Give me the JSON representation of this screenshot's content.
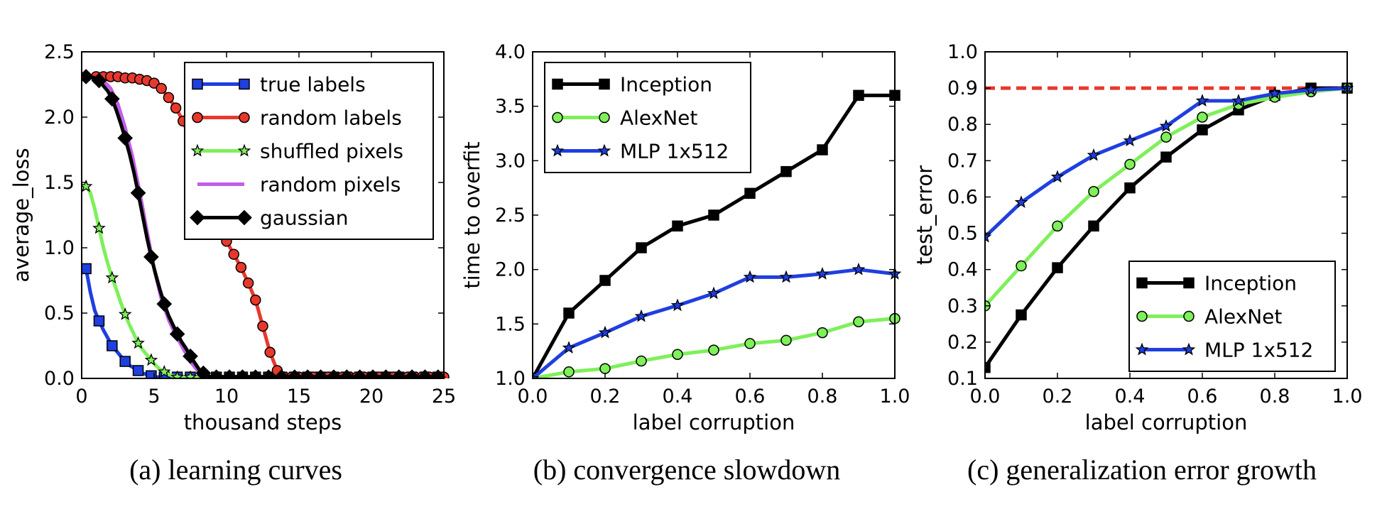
{
  "chart_data": [
    {
      "type": "line",
      "caption": "(a) learning curves",
      "xlabel": "thousand steps",
      "ylabel": "average_loss",
      "xlim": [
        0,
        25
      ],
      "ylim": [
        0,
        2.5
      ],
      "xticks": [
        0,
        5,
        10,
        15,
        20,
        25
      ],
      "yticks": [
        0.0,
        0.5,
        1.0,
        1.5,
        2.0,
        2.5
      ],
      "yticks_decimals": 1,
      "grid": false,
      "legend_position": "top-right",
      "legend_bold": false,
      "series": [
        {
          "name": "true labels",
          "color": "#1f3fe0",
          "marker": "square",
          "x": [
            0.3,
            0.6,
            0.9,
            1.2,
            1.5,
            1.8,
            2.1,
            2.4,
            2.7,
            3.0,
            3.3,
            3.6,
            3.9,
            4.2,
            4.5,
            4.8,
            5.1,
            5.4,
            5.7,
            6.0,
            6.3,
            6.6,
            6.9,
            7.2,
            7.5,
            7.8,
            8.1,
            8.4,
            8.7,
            9.0,
            9.3,
            9.6,
            9.9,
            10.2,
            10.5,
            10.8,
            11.1,
            11.4,
            11.7,
            12.0,
            12.3,
            12.6,
            12.9,
            13.2,
            13.5,
            13.8,
            14.1,
            14.4,
            14.7,
            15.0,
            15.3,
            15.6,
            15.9,
            16.2,
            16.5,
            16.8,
            17.1,
            17.4,
            17.7,
            18.0,
            18.3,
            18.6,
            18.9,
            19.2,
            19.5,
            19.8,
            20.1,
            20.4,
            20.7,
            21.0,
            21.3,
            21.6,
            21.9,
            22.2,
            22.5,
            22.8,
            23.1,
            23.4,
            23.7,
            24.0,
            24.3,
            24.6,
            24.9
          ],
          "y": [
            0.84,
            0.66,
            0.52,
            0.44,
            0.37,
            0.31,
            0.25,
            0.21,
            0.17,
            0.13,
            0.1,
            0.08,
            0.06,
            0.04,
            0.03,
            0.02,
            0.01,
            0.01,
            0.01,
            0.01,
            0.01,
            0.01,
            0.01,
            0.01,
            0.01,
            0.01,
            0.01,
            0.01,
            0.01,
            0.01,
            0.01,
            0.01,
            0.01,
            0.01,
            0.01,
            0.01,
            0.01,
            0.01,
            0.01,
            0.01,
            0.01,
            0.01,
            0.01,
            0.01,
            0.01,
            0.01,
            0.01,
            0.01,
            0.01,
            0.01,
            0.01,
            0.01,
            0.01,
            0.01,
            0.01,
            0.01,
            0.01,
            0.01,
            0.01,
            0.01,
            0.01,
            0.01,
            0.01,
            0.01,
            0.01,
            0.01,
            0.01,
            0.01,
            0.01,
            0.01,
            0.01,
            0.01,
            0.01,
            0.01,
            0.01,
            0.01,
            0.01,
            0.01,
            0.01,
            0.01,
            0.01,
            0.01,
            0.01
          ],
          "marker_every": 3
        },
        {
          "name": "random labels",
          "color": "#e8382c",
          "marker": "circle",
          "x": [
            0.3,
            1.0,
            1.5,
            2.0,
            2.5,
            3.0,
            3.5,
            4.0,
            4.5,
            5.0,
            5.5,
            6.0,
            6.5,
            7.0,
            7.5,
            8.0,
            8.5,
            9.0,
            9.5,
            10.0,
            10.5,
            11.0,
            11.5,
            12.0,
            12.5,
            13.0,
            13.5,
            14.0,
            14.5,
            15.0,
            15.5,
            16.0,
            16.5,
            17.0,
            17.5,
            18.0,
            18.5,
            19.0,
            19.5,
            20.0,
            20.5,
            21.0,
            21.5,
            22.0,
            22.5,
            23.0,
            23.5,
            24.0,
            24.5,
            25.0
          ],
          "y": [
            2.31,
            2.31,
            2.31,
            2.31,
            2.31,
            2.3,
            2.3,
            2.29,
            2.28,
            2.26,
            2.22,
            2.15,
            2.07,
            1.97,
            1.83,
            1.67,
            1.5,
            1.33,
            1.18,
            1.05,
            0.95,
            0.85,
            0.73,
            0.6,
            0.4,
            0.2,
            0.06,
            0.01,
            0.01,
            0.01,
            0.01,
            0.01,
            0.01,
            0.01,
            0.01,
            0.01,
            0.01,
            0.01,
            0.01,
            0.01,
            0.01,
            0.01,
            0.01,
            0.01,
            0.01,
            0.01,
            0.01,
            0.01,
            0.01,
            0.01
          ],
          "marker_every": 1
        },
        {
          "name": "shuffled pixels",
          "color": "#7ef05a",
          "marker": "star",
          "x": [
            0.3,
            0.6,
            0.9,
            1.2,
            1.5,
            1.8,
            2.1,
            2.4,
            2.7,
            3.0,
            3.3,
            3.6,
            3.9,
            4.2,
            4.5,
            4.8,
            5.1,
            5.4,
            5.7,
            6.0,
            6.3,
            6.6,
            6.9,
            7.2,
            7.5,
            7.8,
            8.1,
            8.4,
            8.7,
            9.0,
            9.3,
            9.6,
            9.9,
            10.2,
            10.5,
            10.8,
            11.1,
            11.4,
            11.7,
            12.0,
            12.3,
            12.6,
            12.9,
            13.2,
            13.5,
            13.8,
            14.1,
            14.4,
            14.7,
            15.0,
            15.3,
            15.6,
            15.9,
            16.2,
            16.5,
            16.8,
            17.1,
            17.4,
            17.7,
            18.0,
            18.3,
            18.6,
            18.9,
            19.2,
            19.5,
            19.8,
            20.1,
            20.4,
            20.7,
            21.0,
            21.3,
            21.6,
            21.9,
            22.2,
            22.5,
            22.8,
            23.1,
            23.4,
            23.7,
            24.0,
            24.3,
            24.6,
            24.9
          ],
          "y": [
            1.47,
            1.42,
            1.3,
            1.15,
            1.0,
            0.88,
            0.77,
            0.68,
            0.58,
            0.49,
            0.41,
            0.34,
            0.27,
            0.22,
            0.18,
            0.14,
            0.1,
            0.07,
            0.05,
            0.03,
            0.02,
            0.01,
            0.01,
            0.01,
            0.01,
            0.01,
            0.01,
            0.01,
            0.01,
            0.01,
            0.01,
            0.01,
            0.01,
            0.01,
            0.01,
            0.01,
            0.01,
            0.01,
            0.01,
            0.01,
            0.01,
            0.01,
            0.01,
            0.01,
            0.01,
            0.01,
            0.01,
            0.01,
            0.01,
            0.01,
            0.01,
            0.01,
            0.01,
            0.01,
            0.01,
            0.01,
            0.01,
            0.01,
            0.01,
            0.01,
            0.01,
            0.01,
            0.01,
            0.01,
            0.01,
            0.01,
            0.01,
            0.01,
            0.01,
            0.01,
            0.01,
            0.01,
            0.01,
            0.01,
            0.01,
            0.01,
            0.01,
            0.01,
            0.01,
            0.01,
            0.01,
            0.01,
            0.01
          ],
          "marker_every": 3
        },
        {
          "name": "random pixels",
          "color": "#c25ee8",
          "marker": "none",
          "x": [
            0.3,
            1.0,
            1.5,
            2.0,
            2.5,
            3.0,
            3.5,
            4.0,
            4.5,
            5.0,
            5.5,
            6.0,
            6.5,
            7.0,
            7.5,
            8.0,
            8.5,
            9.0,
            10.0,
            15.0,
            20.0,
            25.0
          ],
          "y": [
            2.31,
            2.3,
            2.28,
            2.22,
            2.1,
            1.92,
            1.7,
            1.43,
            1.13,
            0.84,
            0.61,
            0.45,
            0.33,
            0.23,
            0.13,
            0.06,
            0.02,
            0.01,
            0.01,
            0.01,
            0.01,
            0.01
          ],
          "marker_every": 0
        },
        {
          "name": "gaussian",
          "color": "#000000",
          "marker": "diamond",
          "x": [
            0.3,
            0.6,
            0.9,
            1.2,
            1.5,
            1.8,
            2.1,
            2.4,
            2.7,
            3.0,
            3.3,
            3.6,
            3.9,
            4.2,
            4.5,
            4.8,
            5.1,
            5.4,
            5.7,
            6.0,
            6.3,
            6.6,
            6.9,
            7.2,
            7.5,
            7.8,
            8.1,
            8.4,
            8.7,
            9.0,
            9.3,
            9.6,
            9.9,
            10.2,
            10.5,
            10.8,
            11.1,
            11.4,
            11.7,
            12.0,
            12.3,
            12.6,
            12.9,
            13.2,
            13.5,
            13.8,
            14.1,
            14.4,
            14.7,
            15.0,
            15.3,
            15.6,
            15.9,
            16.2,
            16.5,
            16.8,
            17.1,
            17.4,
            17.7,
            18.0,
            18.3,
            18.6,
            18.9,
            19.2,
            19.5,
            19.8,
            20.1,
            20.4,
            20.7,
            21.0,
            21.3,
            21.6,
            21.9,
            22.2,
            22.5,
            22.8,
            23.1,
            23.4,
            23.7,
            24.0,
            24.3,
            24.6,
            24.9
          ],
          "y": [
            2.31,
            2.31,
            2.3,
            2.28,
            2.24,
            2.2,
            2.14,
            2.05,
            1.95,
            1.84,
            1.72,
            1.58,
            1.42,
            1.25,
            1.08,
            0.93,
            0.8,
            0.68,
            0.57,
            0.48,
            0.41,
            0.34,
            0.28,
            0.23,
            0.17,
            0.12,
            0.07,
            0.04,
            0.02,
            0.01,
            0.01,
            0.01,
            0.01,
            0.01,
            0.01,
            0.01,
            0.01,
            0.01,
            0.01,
            0.01,
            0.01,
            0.01,
            0.01,
            0.01,
            0.01,
            0.01,
            0.01,
            0.01,
            0.01,
            0.01,
            0.01,
            0.01,
            0.01,
            0.01,
            0.01,
            0.01,
            0.01,
            0.01,
            0.01,
            0.01,
            0.01,
            0.01,
            0.01,
            0.01,
            0.01,
            0.01,
            0.01,
            0.01,
            0.01,
            0.01,
            0.01,
            0.01,
            0.01,
            0.01,
            0.01,
            0.01,
            0.01,
            0.01,
            0.01,
            0.01,
            0.01,
            0.01,
            0.01
          ],
          "marker_every": 3
        }
      ]
    },
    {
      "type": "line",
      "caption": "(b) convergence slowdown",
      "xlabel": "label corruption",
      "ylabel": "time to overfit",
      "xlim": [
        0,
        1
      ],
      "ylim": [
        1,
        4
      ],
      "xticks": [
        0.0,
        0.2,
        0.4,
        0.6,
        0.8,
        1.0
      ],
      "yticks": [
        1.0,
        1.5,
        2.0,
        2.5,
        3.0,
        3.5,
        4.0
      ],
      "yticks_decimals": 1,
      "grid": false,
      "legend_position": "top-left",
      "series": [
        {
          "name": "Inception",
          "color": "#000000",
          "marker": "square",
          "x": [
            0.0,
            0.1,
            0.2,
            0.3,
            0.4,
            0.5,
            0.6,
            0.7,
            0.8,
            0.9,
            1.0
          ],
          "y": [
            1.0,
            1.6,
            1.9,
            2.2,
            2.4,
            2.5,
            2.7,
            2.9,
            3.1,
            3.6,
            3.6
          ],
          "marker_every": 1
        },
        {
          "name": "AlexNet",
          "color": "#7ef05a",
          "marker": "circle",
          "x": [
            0.0,
            0.1,
            0.2,
            0.3,
            0.4,
            0.5,
            0.6,
            0.7,
            0.8,
            0.9,
            1.0
          ],
          "y": [
            1.0,
            1.06,
            1.09,
            1.16,
            1.22,
            1.26,
            1.32,
            1.35,
            1.42,
            1.52,
            1.55
          ],
          "marker_every": 1
        },
        {
          "name": "MLP 1x512",
          "color": "#1f3fe0",
          "marker": "star",
          "x": [
            0.0,
            0.1,
            0.2,
            0.3,
            0.4,
            0.5,
            0.6,
            0.7,
            0.8,
            0.9,
            1.0
          ],
          "y": [
            1.0,
            1.28,
            1.42,
            1.57,
            1.67,
            1.78,
            1.93,
            1.93,
            1.96,
            2.0,
            1.96
          ],
          "marker_every": 1
        }
      ]
    },
    {
      "type": "line",
      "caption": "(c) generalization error growth",
      "xlabel": "label corruption",
      "ylabel": "test_error",
      "xlim": [
        0,
        1
      ],
      "ylim": [
        0.1,
        1.0
      ],
      "xticks": [
        0.0,
        0.2,
        0.4,
        0.6,
        0.8,
        1.0
      ],
      "yticks": [
        0.1,
        0.2,
        0.3,
        0.4,
        0.5,
        0.6,
        0.7,
        0.8,
        0.9,
        1.0
      ],
      "yticks_decimals": 1,
      "grid": false,
      "legend_position": "lower-right",
      "reference_line": {
        "y": 0.9,
        "color": "#e8382c",
        "style": "dashed"
      },
      "series": [
        {
          "name": "Inception",
          "color": "#000000",
          "marker": "square",
          "x": [
            0.0,
            0.1,
            0.2,
            0.3,
            0.4,
            0.5,
            0.6,
            0.7,
            0.8,
            0.9,
            1.0
          ],
          "y": [
            0.13,
            0.275,
            0.405,
            0.52,
            0.625,
            0.71,
            0.785,
            0.84,
            0.88,
            0.9,
            0.9
          ],
          "marker_every": 1
        },
        {
          "name": "AlexNet",
          "color": "#7ef05a",
          "marker": "circle",
          "x": [
            0.0,
            0.1,
            0.2,
            0.3,
            0.4,
            0.5,
            0.6,
            0.7,
            0.8,
            0.9,
            1.0
          ],
          "y": [
            0.3,
            0.41,
            0.52,
            0.615,
            0.69,
            0.765,
            0.82,
            0.855,
            0.875,
            0.89,
            0.9
          ],
          "marker_every": 1
        },
        {
          "name": "MLP 1x512",
          "color": "#1f3fe0",
          "marker": "star",
          "x": [
            0.0,
            0.1,
            0.2,
            0.3,
            0.4,
            0.5,
            0.6,
            0.7,
            0.8,
            0.9,
            1.0
          ],
          "y": [
            0.49,
            0.585,
            0.655,
            0.715,
            0.755,
            0.795,
            0.865,
            0.865,
            0.885,
            0.895,
            0.9
          ],
          "marker_every": 1
        }
      ]
    }
  ]
}
